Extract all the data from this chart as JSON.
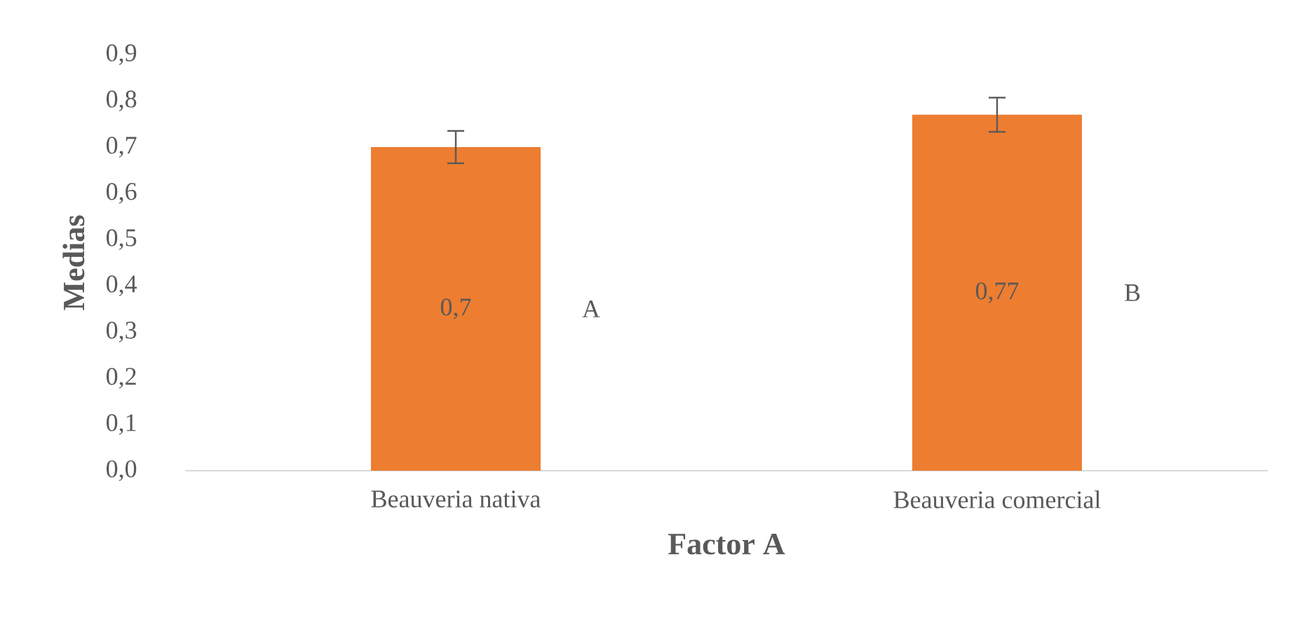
{
  "chart_data": {
    "type": "bar",
    "xlabel": "Factor A",
    "ylabel": "Medias",
    "categories": [
      "Beauveria nativa",
      "Beauveria comercial"
    ],
    "values": [
      0.7,
      0.77
    ],
    "color": "#ed7d31",
    "errors": [
      0.035,
      0.037
    ],
    "value_labels": [
      "0,7",
      "0,77"
    ],
    "annotations": [
      "A",
      "B"
    ],
    "ylim": [
      0,
      0.9
    ],
    "yticks": [
      {
        "value": 0,
        "label": "0,0"
      },
      {
        "value": 0.1,
        "label": "0,1"
      },
      {
        "value": 0.2,
        "label": "0,2"
      },
      {
        "value": 0.3,
        "label": "0,3"
      },
      {
        "value": 0.4,
        "label": "0,4"
      },
      {
        "value": 0.5,
        "label": "0,5"
      },
      {
        "value": 0.6,
        "label": "0,6"
      },
      {
        "value": 0.7,
        "label": "0,7"
      },
      {
        "value": 0.8,
        "label": "0,8"
      },
      {
        "value": 0.9,
        "label": "0,9"
      }
    ],
    "grid": false
  }
}
